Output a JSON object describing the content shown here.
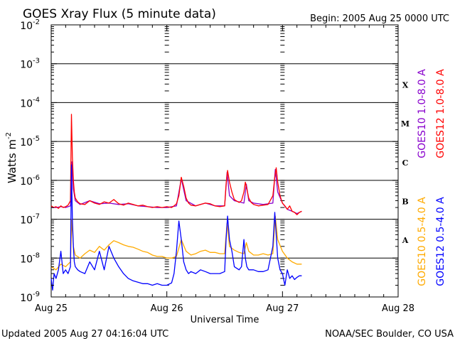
{
  "chart_data": {
    "type": "line",
    "title": "GOES Xray Flux (5 minute data)",
    "begin": "Begin:  2005 Aug 25 0000 UTC",
    "xlabel": "Universal Time",
    "ylabel_main": "Watts m",
    "ylabel_exp": "-2",
    "ylog": true,
    "ylim": [
      1e-09,
      0.01
    ],
    "y_ticks": [
      {
        "mant": "10",
        "exp": "-2",
        "value": 0.01
      },
      {
        "mant": "10",
        "exp": "-3",
        "value": 0.001
      },
      {
        "mant": "10",
        "exp": "-4",
        "value": 0.0001
      },
      {
        "mant": "10",
        "exp": "-5",
        "value": 1e-05
      },
      {
        "mant": "10",
        "exp": "-6",
        "value": 1e-06
      },
      {
        "mant": "10",
        "exp": "-7",
        "value": 1e-07
      },
      {
        "mant": "10",
        "exp": "-8",
        "value": 1e-08
      },
      {
        "mant": "10",
        "exp": "-9",
        "value": 1e-09
      }
    ],
    "xlim": [
      0,
      72
    ],
    "x_ticks": [
      {
        "label": "Aug 25",
        "hour": 0
      },
      {
        "label": "Aug 26",
        "hour": 24
      },
      {
        "label": "Aug 27",
        "hour": 48
      },
      {
        "label": "Aug 28",
        "hour": 72
      }
    ],
    "grid": true,
    "flare_classes": [
      {
        "label": "X",
        "value": 0.0003
      },
      {
        "label": "M",
        "value": 3e-05
      },
      {
        "label": "C",
        "value": 3e-06
      },
      {
        "label": "B",
        "value": 3e-07
      },
      {
        "label": "A",
        "value": 3e-08
      }
    ],
    "series": [
      {
        "name": "GOES10 1.0-8.0 A",
        "color": "#8800cc",
        "hours": [
          0,
          1,
          2,
          3,
          4,
          4.3,
          4.6,
          5,
          6,
          8,
          10,
          12,
          14,
          16,
          18,
          20,
          22,
          24,
          26,
          27,
          28,
          30,
          32,
          34,
          36,
          36.5,
          37,
          38,
          40,
          40.5,
          41,
          42,
          44,
          46,
          46.5,
          47,
          48,
          49,
          50,
          51,
          52
        ],
        "values": [
          2e-07,
          2e-07,
          2.1e-07,
          2e-07,
          2.2e-07,
          3e-06,
          6e-07,
          3e-07,
          2.4e-07,
          3e-07,
          2.5e-07,
          2.6e-07,
          2.4e-07,
          2.5e-07,
          2.2e-07,
          2.1e-07,
          2e-07,
          2e-07,
          2.2e-07,
          1.1e-06,
          3e-07,
          2.2e-07,
          2.6e-07,
          2.2e-07,
          2.2e-07,
          1.6e-06,
          4e-07,
          3e-07,
          2.6e-07,
          8e-07,
          3e-07,
          2.6e-07,
          2.4e-07,
          2.6e-07,
          1.9e-06,
          5e-07,
          2.6e-07,
          1.8e-07,
          1.6e-07,
          1.4e-07,
          1.6e-07
        ]
      },
      {
        "name": "GOES12 1.0-8.0 A",
        "color": "#ff0000",
        "hours": [
          0,
          0.5,
          1,
          1.5,
          2,
          2.5,
          3,
          3.5,
          4,
          4.2,
          4.4,
          4.6,
          4.8,
          5,
          5.5,
          6,
          7,
          8,
          9,
          10,
          11,
          12,
          13,
          14,
          15,
          16,
          17,
          18,
          19,
          20,
          21,
          22,
          23,
          24,
          25,
          25.5,
          26,
          26.5,
          27,
          27.5,
          28,
          28.5,
          29,
          30,
          31,
          32,
          33,
          34,
          35,
          36,
          36.3,
          36.6,
          37,
          37.5,
          38,
          39,
          39.5,
          40,
          40.3,
          40.6,
          41,
          41.5,
          42,
          43,
          44,
          45,
          46,
          46.4,
          46.7,
          47,
          47.5,
          48,
          48.5,
          49,
          49.5,
          50,
          50.5,
          51,
          51.5,
          52
        ],
        "values": [
          2.2e-07,
          2e-07,
          2.1e-07,
          1.9e-07,
          2.2e-07,
          2e-07,
          2.1e-07,
          2.3e-07,
          3e-07,
          5e-05,
          4e-06,
          1e-06,
          5e-07,
          3.5e-07,
          2.8e-07,
          2.5e-07,
          2.4e-07,
          3e-07,
          2.6e-07,
          2.4e-07,
          2.8e-07,
          2.6e-07,
          3.2e-07,
          2.5e-07,
          2.3e-07,
          2.6e-07,
          2.4e-07,
          2.2e-07,
          2.3e-07,
          2.1e-07,
          2e-07,
          2.1e-07,
          2e-07,
          2.1e-07,
          2e-07,
          2.2e-07,
          2.5e-07,
          4e-07,
          1.2e-06,
          7e-07,
          3.5e-07,
          2.6e-07,
          2.3e-07,
          2.2e-07,
          2.4e-07,
          2.6e-07,
          2.5e-07,
          2.2e-07,
          2.1e-07,
          2.2e-07,
          8e-07,
          1.8e-06,
          9e-07,
          5e-07,
          3.2e-07,
          2.7e-07,
          3e-07,
          5e-07,
          9e-07,
          6e-07,
          3.5e-07,
          2.7e-07,
          2.4e-07,
          2.2e-07,
          2.3e-07,
          2.4e-07,
          4e-07,
          1.2e-06,
          2.1e-06,
          9e-07,
          4e-07,
          2.6e-07,
          2.2e-07,
          1.8e-07,
          2.2e-07,
          1.6e-07,
          1.5e-07,
          1.3e-07,
          1.5e-07,
          1.6e-07
        ]
      },
      {
        "name": "GOES10 0.5-4.0 A",
        "color": "#ffaa00",
        "hours": [
          0,
          1,
          2,
          3,
          4,
          4.3,
          4.6,
          5,
          6,
          7,
          8,
          9,
          10,
          11,
          12,
          13,
          14,
          15,
          16,
          17,
          18,
          19,
          20,
          21,
          22,
          23,
          24,
          25,
          26,
          27,
          28,
          29,
          30,
          31,
          32,
          33,
          34,
          35,
          36,
          36.5,
          37,
          38,
          39,
          40,
          40.5,
          41,
          42,
          43,
          44,
          45,
          46,
          46.5,
          47,
          48,
          49,
          50,
          51,
          52
        ],
        "values": [
          6e-09,
          5e-09,
          7e-09,
          6e-09,
          8e-09,
          1e-07,
          2e-08,
          1.2e-08,
          1e-08,
          1.3e-08,
          1.6e-08,
          1.4e-08,
          2e-08,
          1.6e-08,
          2.2e-08,
          2.8e-08,
          2.5e-08,
          2.2e-08,
          2e-08,
          1.9e-08,
          1.7e-08,
          1.5e-08,
          1.4e-08,
          1.2e-08,
          1.1e-08,
          1.1e-08,
          1e-08,
          1e-08,
          1.1e-08,
          3e-08,
          1.5e-08,
          1.2e-08,
          1.3e-08,
          1.5e-08,
          1.6e-08,
          1.4e-08,
          1.4e-08,
          1.3e-08,
          1.3e-08,
          8e-08,
          2e-08,
          1.6e-08,
          1.4e-08,
          1.3e-08,
          2.5e-08,
          1.5e-08,
          1.2e-08,
          1.2e-08,
          1.3e-08,
          1.2e-08,
          1.3e-08,
          1.2e-07,
          3e-08,
          1.5e-08,
          1e-08,
          8e-09,
          7e-09,
          7e-09
        ]
      },
      {
        "name": "GOES12 0.5-4.0 A",
        "color": "#0000ff",
        "hours": [
          0,
          0.3,
          0.6,
          1,
          1.5,
          2,
          2.5,
          3,
          3.5,
          4,
          4.2,
          4.4,
          4.6,
          4.8,
          5,
          5.5,
          6,
          7,
          8,
          9,
          10,
          11,
          12,
          13,
          14,
          15,
          16,
          17,
          18,
          19,
          20,
          21,
          22,
          23,
          24,
          25,
          25.5,
          26,
          26.5,
          27,
          27.5,
          28,
          28.5,
          29,
          30,
          31,
          32,
          33,
          34,
          35,
          36,
          36.3,
          36.6,
          37,
          37.5,
          38,
          39,
          39.5,
          40,
          40.3,
          40.6,
          41,
          41.5,
          42,
          43,
          44,
          45,
          46,
          46.4,
          46.7,
          47,
          47.5,
          48,
          48.5,
          49,
          49.5,
          50,
          50.5,
          51,
          51.5,
          52
        ],
        "values": [
          3e-09,
          1.5e-09,
          4e-09,
          3e-09,
          5e-09,
          1.5e-08,
          4e-09,
          5e-09,
          4e-09,
          6e-09,
          2.5e-06,
          1e-07,
          2e-08,
          8e-09,
          6e-09,
          5e-09,
          4.5e-09,
          4e-09,
          8e-09,
          5e-09,
          1.5e-08,
          5e-09,
          2e-08,
          1e-08,
          6e-09,
          4e-09,
          3e-09,
          2.6e-09,
          2.4e-09,
          2.2e-09,
          2.2e-09,
          2e-09,
          2.2e-09,
          2e-09,
          2e-09,
          2.3e-09,
          4e-09,
          1.5e-08,
          9e-08,
          3e-08,
          8e-09,
          5e-09,
          4e-09,
          4.5e-09,
          4e-09,
          5e-09,
          4.5e-09,
          4e-09,
          4e-09,
          4e-09,
          4.5e-09,
          3e-08,
          1.2e-07,
          3e-08,
          1.5e-08,
          6e-09,
          5e-09,
          6e-09,
          3e-08,
          1e-08,
          6e-09,
          5e-09,
          5e-09,
          5e-09,
          4.5e-09,
          4.5e-09,
          5e-09,
          2e-08,
          1.5e-07,
          4e-08,
          1e-08,
          5e-09,
          4e-09,
          2e-09,
          5e-09,
          3e-09,
          3.5e-09,
          2.8e-09,
          3.2e-09,
          3.5e-09,
          3.5e-09
        ]
      }
    ]
  },
  "footer": {
    "updated": "Updated 2005 Aug 27 04:16:04 UTC",
    "credit": "NOAA/SEC Boulder, CO USA"
  }
}
